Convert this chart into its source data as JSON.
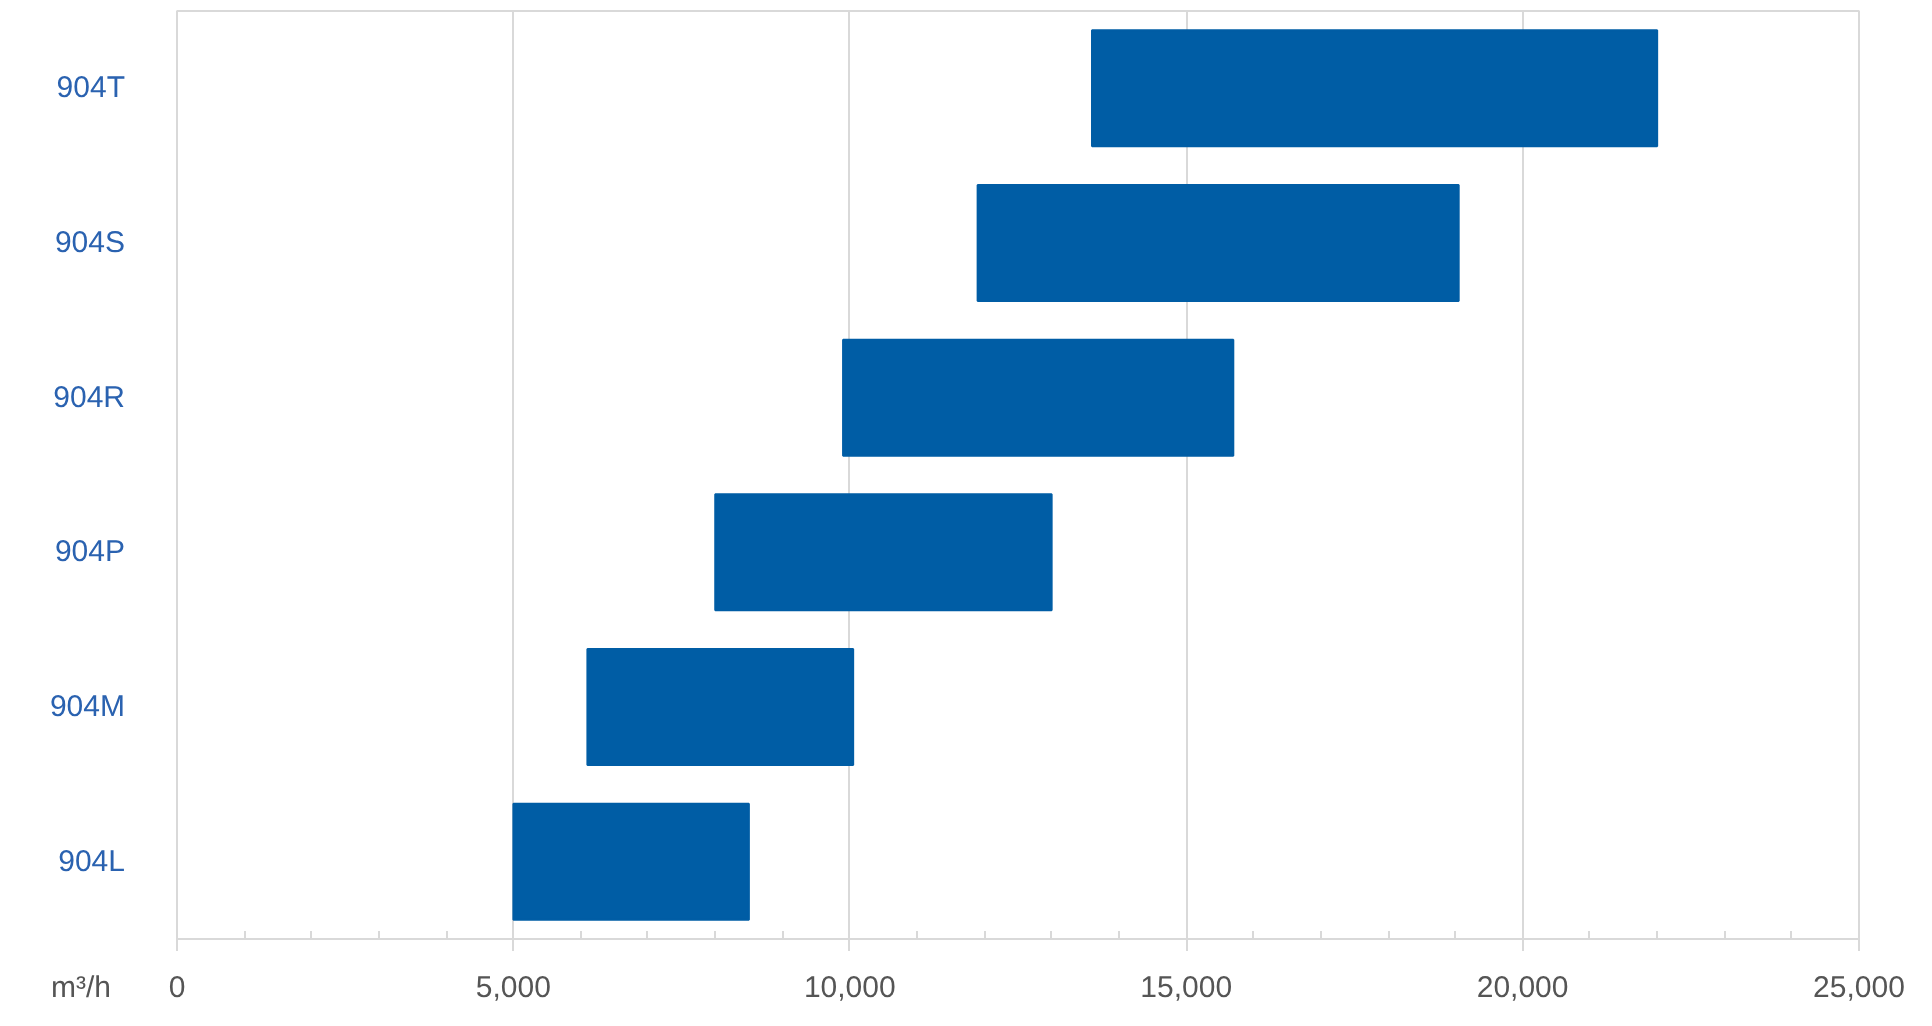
{
  "chart_data": {
    "type": "bar",
    "orientation": "horizontal",
    "xlabel": "m³/h",
    "categories": [
      "904T",
      "904S",
      "904R",
      "904P",
      "904M",
      "904L"
    ],
    "base": [
      13600,
      11900,
      9900,
      8000,
      6100,
      5000
    ],
    "values": [
      8400,
      7150,
      5800,
      5000,
      3950,
      3500
    ],
    "color": "#005da5",
    "xlim": [
      0,
      25000
    ],
    "xticks": [
      0,
      {
        "value": 1000,
        "label": null
      },
      {
        "value": 2000,
        "label": null
      },
      {
        "value": 3000,
        "label": null
      },
      {
        "value": 4000,
        "label": null
      },
      {
        "value": 5000,
        "label": "5,000"
      },
      {
        "value": 6000,
        "label": null
      },
      {
        "value": 7000,
        "label": null
      },
      {
        "value": 8000,
        "label": null
      },
      {
        "value": 9000,
        "label": null
      },
      {
        "value": 10000,
        "label": "10,000"
      },
      {
        "value": 11000,
        "label": null
      },
      {
        "value": 12000,
        "label": null
      },
      {
        "value": 13000,
        "label": null
      },
      {
        "value": 14000,
        "label": null
      },
      {
        "value": 15000,
        "label": "15,000"
      },
      {
        "value": 16000,
        "label": null
      },
      {
        "value": 17000,
        "label": null
      },
      {
        "value": 18000,
        "label": null
      },
      {
        "value": 19000,
        "label": null
      },
      {
        "value": 20000,
        "label": "20,000"
      },
      {
        "value": 21000,
        "label": null
      },
      {
        "value": 22000,
        "label": null
      },
      {
        "value": 23000,
        "label": null
      },
      {
        "value": 24000,
        "label": null
      },
      {
        "value": 25000,
        "label": "25,000"
      }
    ],
    "grid": "x"
  }
}
